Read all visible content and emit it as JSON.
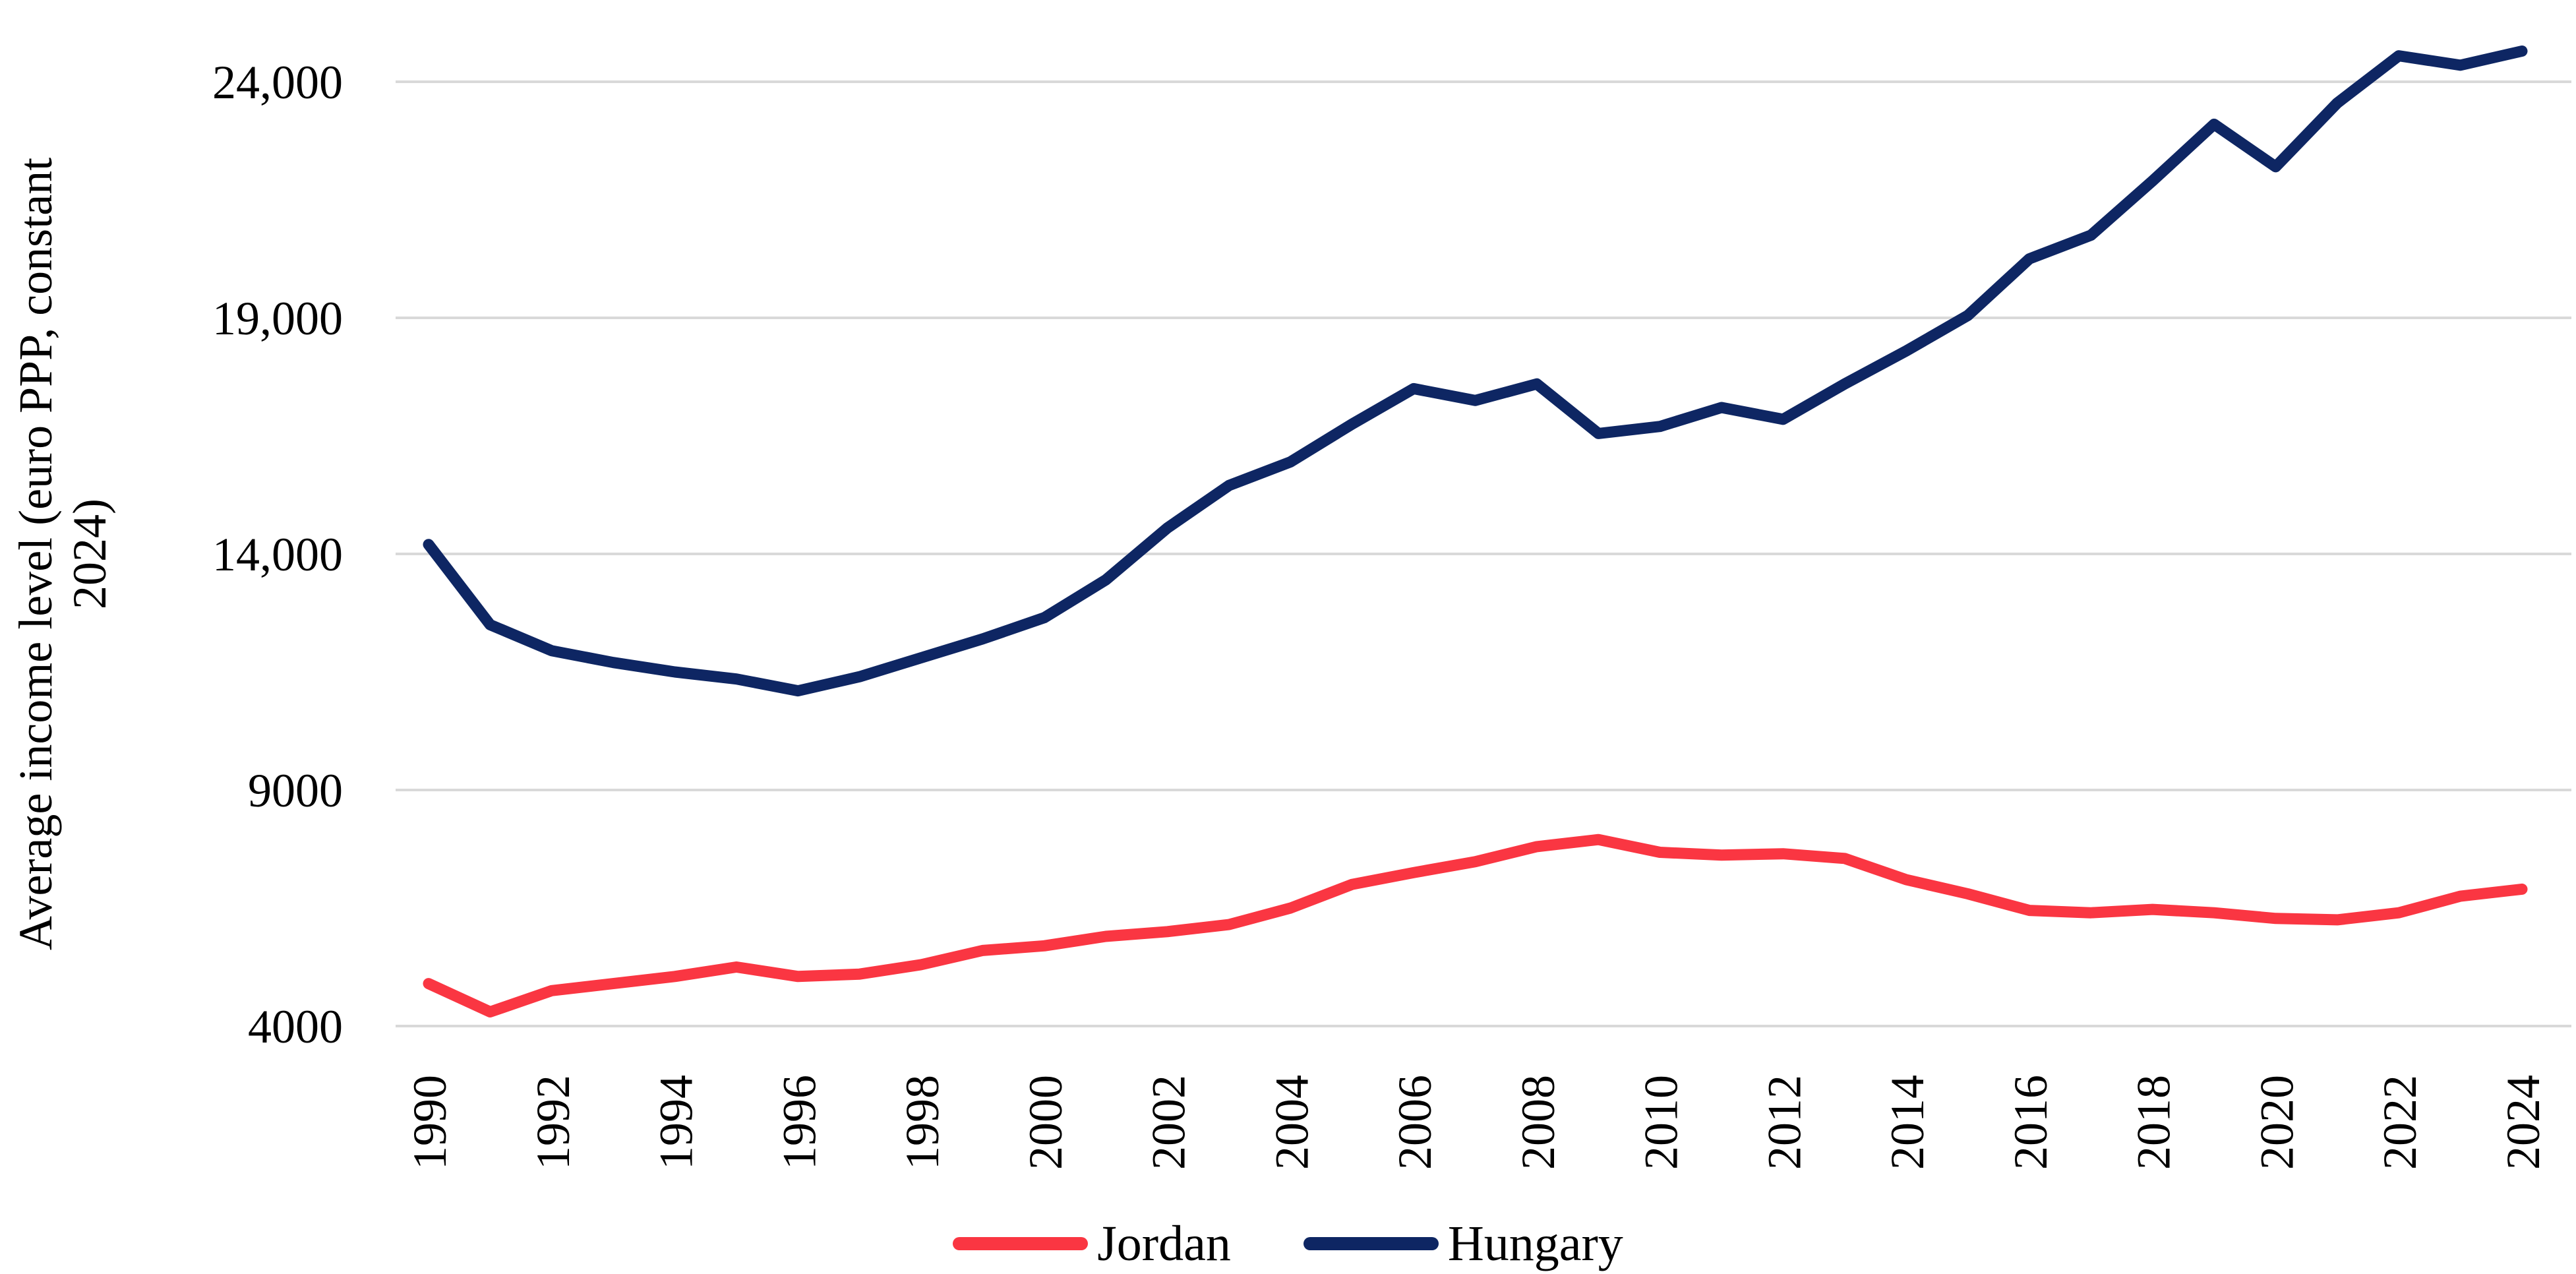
{
  "y_axis": {
    "title_line1": "Average income level (euro PPP, constant",
    "title_line2": "2024)",
    "ticks": [
      {
        "label": "24,000",
        "value": 24000
      },
      {
        "label": "19,000",
        "value": 19000
      },
      {
        "label": "14,000",
        "value": 14000
      },
      {
        "label": "9000",
        "value": 9000
      },
      {
        "label": "4000",
        "value": 4000
      }
    ]
  },
  "x_axis": {
    "ticks": [
      {
        "label": "1990",
        "value": 1990
      },
      {
        "label": "1992",
        "value": 1992
      },
      {
        "label": "1994",
        "value": 1994
      },
      {
        "label": "1996",
        "value": 1996
      },
      {
        "label": "1998",
        "value": 1998
      },
      {
        "label": "2000",
        "value": 2000
      },
      {
        "label": "2002",
        "value": 2002
      },
      {
        "label": "2004",
        "value": 2004
      },
      {
        "label": "2006",
        "value": 2006
      },
      {
        "label": "2008",
        "value": 2008
      },
      {
        "label": "2010",
        "value": 2010
      },
      {
        "label": "2012",
        "value": 2012
      },
      {
        "label": "2014",
        "value": 2014
      },
      {
        "label": "2016",
        "value": 2016
      },
      {
        "label": "2018",
        "value": 2018
      },
      {
        "label": "2020",
        "value": 2020
      },
      {
        "label": "2022",
        "value": 2022
      },
      {
        "label": "2024",
        "value": 2024
      }
    ]
  },
  "legend": {
    "items": [
      {
        "label": "Jordan",
        "color": "#FA3642"
      },
      {
        "label": "Hungary",
        "color": "#0E2663"
      }
    ]
  },
  "colors": {
    "gridline": "#D9D9D9",
    "background": "#FFFFFF",
    "text": "#000000",
    "jordan": "#FA3642",
    "hungary": "#0E2663"
  },
  "chart_data": {
    "type": "line",
    "title": "",
    "xlabel": "",
    "ylabel": "Average income level (euro PPP, constant 2024)",
    "ylim": [
      4000,
      24000
    ],
    "gridlines": [
      4000,
      9000,
      14000,
      19000,
      24000
    ],
    "grid": "horizontal-only",
    "legend_position": "bottom",
    "x": [
      1990,
      1991,
      1992,
      1993,
      1994,
      1995,
      1996,
      1997,
      1998,
      1999,
      2000,
      2001,
      2002,
      2003,
      2004,
      2005,
      2006,
      2007,
      2008,
      2009,
      2010,
      2011,
      2012,
      2013,
      2014,
      2015,
      2016,
      2017,
      2018,
      2019,
      2020,
      2021,
      2022,
      2023,
      2024
    ],
    "series": [
      {
        "name": "Jordan",
        "color": "#FA3642",
        "values": [
          4900,
          4300,
          4750,
          4900,
          5050,
          5250,
          5050,
          5100,
          5300,
          5600,
          5700,
          5900,
          6000,
          6150,
          6500,
          7000,
          7250,
          7480,
          7800,
          7950,
          7680,
          7620,
          7650,
          7550,
          7100,
          6800,
          6450,
          6400,
          6470,
          6400,
          6280,
          6250,
          6400,
          6750,
          6900
        ]
      },
      {
        "name": "Hungary",
        "color": "#0E2663",
        "values": [
          14200,
          12500,
          11950,
          11700,
          11500,
          11350,
          11100,
          11400,
          11800,
          12200,
          12650,
          13450,
          14550,
          15450,
          15950,
          16750,
          17500,
          17250,
          17600,
          16550,
          16700,
          17100,
          16850,
          17600,
          18300,
          19050,
          20250,
          20750,
          21900,
          23100,
          22200,
          23550,
          24550,
          24350,
          24650
        ]
      }
    ]
  }
}
